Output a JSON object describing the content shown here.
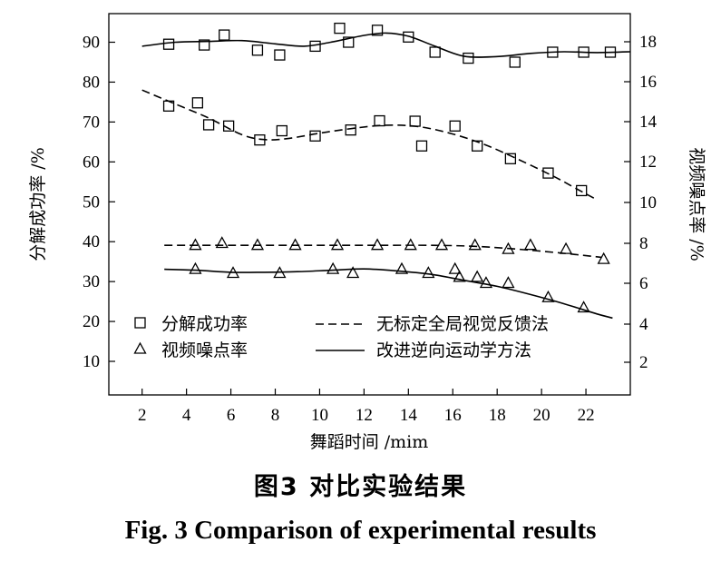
{
  "caption": {
    "cn": "图3  对比实验结果",
    "en": "Fig. 3   Comparison of experimental results"
  },
  "chart_data": {
    "type": "line",
    "xlabel": "舞蹈时间  /mim",
    "ylabel_left": "分解成功率 /%",
    "ylabel_right": "视频噪点率 /%",
    "x_ticks": [
      2,
      4,
      6,
      8,
      10,
      12,
      14,
      16,
      18,
      20,
      22
    ],
    "y_left_ticks": [
      10,
      20,
      30,
      40,
      50,
      60,
      70,
      80,
      90
    ],
    "y_right_ticks": [
      2,
      4,
      6,
      8,
      10,
      12,
      14,
      16,
      18
    ],
    "x_range": [
      0.5,
      24.0
    ],
    "legend": {
      "markers": [
        "分解成功率",
        "视频噪点率"
      ],
      "lines": [
        "无标定全局视觉反馈法",
        "改进逆向运动学方法"
      ]
    },
    "series": [
      {
        "name": "分解成功率",
        "method": "改进逆向运动学方法",
        "axis": "left",
        "marker": "square",
        "points": [
          [
            3.2,
            89.5
          ],
          [
            4.8,
            89.3
          ],
          [
            5.7,
            91.8
          ],
          [
            7.2,
            88.0
          ],
          [
            8.2,
            86.8
          ],
          [
            9.8,
            89.0
          ],
          [
            10.9,
            93.5
          ],
          [
            11.3,
            90.0
          ],
          [
            12.6,
            93.0
          ],
          [
            14.0,
            91.3
          ],
          [
            15.2,
            87.5
          ],
          [
            16.7,
            86.0
          ],
          [
            18.8,
            85.0
          ],
          [
            20.5,
            87.5
          ],
          [
            21.9,
            87.5
          ],
          [
            23.1,
            87.5
          ]
        ],
        "curve": [
          [
            2.0,
            89.0
          ],
          [
            3.5,
            90.0
          ],
          [
            5.0,
            90.2
          ],
          [
            6.5,
            90.4
          ],
          [
            8.0,
            89.6
          ],
          [
            9.3,
            89.0
          ],
          [
            10.5,
            90.0
          ],
          [
            12.0,
            91.7
          ],
          [
            13.0,
            92.3
          ],
          [
            14.0,
            91.5
          ],
          [
            15.2,
            89.0
          ],
          [
            16.5,
            86.5
          ],
          [
            18.0,
            86.4
          ],
          [
            19.5,
            87.2
          ],
          [
            21.0,
            87.6
          ],
          [
            22.5,
            87.4
          ],
          [
            24.0,
            87.6
          ]
        ]
      },
      {
        "name": "分解成功率",
        "method": "无标定全局视觉反馈法",
        "axis": "left",
        "marker": "square",
        "points": [
          [
            3.2,
            74.0
          ],
          [
            4.5,
            74.8
          ],
          [
            5.0,
            69.3
          ],
          [
            5.9,
            69.0
          ],
          [
            7.3,
            65.5
          ],
          [
            8.3,
            67.8
          ],
          [
            9.8,
            66.5
          ],
          [
            11.4,
            68.0
          ],
          [
            12.7,
            70.3
          ],
          [
            14.3,
            70.2
          ],
          [
            14.6,
            64.0
          ],
          [
            16.1,
            69.0
          ],
          [
            17.1,
            64.0
          ],
          [
            18.6,
            60.8
          ],
          [
            20.3,
            57.2
          ],
          [
            21.8,
            52.8
          ]
        ],
        "curve": [
          [
            2.0,
            78.0
          ],
          [
            3.5,
            74.5
          ],
          [
            5.0,
            71.0
          ],
          [
            6.5,
            66.8
          ],
          [
            7.5,
            65.6
          ],
          [
            8.5,
            65.8
          ],
          [
            10.0,
            67.2
          ],
          [
            11.5,
            68.4
          ],
          [
            13.0,
            69.2
          ],
          [
            14.5,
            68.8
          ],
          [
            16.0,
            67.0
          ],
          [
            17.5,
            64.2
          ],
          [
            19.0,
            60.5
          ],
          [
            20.5,
            56.5
          ],
          [
            21.5,
            53.5
          ],
          [
            22.5,
            50.5
          ]
        ]
      },
      {
        "name": "视频噪点率",
        "method": "无标定全局视觉反馈法",
        "axis": "right",
        "marker": "triangle",
        "points": [
          [
            4.4,
            7.9
          ],
          [
            5.6,
            8.0
          ],
          [
            7.2,
            7.9
          ],
          [
            8.9,
            7.9
          ],
          [
            10.8,
            7.9
          ],
          [
            12.6,
            7.9
          ],
          [
            14.1,
            7.9
          ],
          [
            15.5,
            7.9
          ],
          [
            17.0,
            7.9
          ],
          [
            18.5,
            7.7
          ],
          [
            19.5,
            7.9
          ],
          [
            21.1,
            7.7
          ],
          [
            22.8,
            7.2
          ]
        ],
        "curve": [
          [
            3.0,
            7.9
          ],
          [
            6.0,
            7.9
          ],
          [
            9.0,
            7.9
          ],
          [
            12.0,
            7.9
          ],
          [
            15.0,
            7.9
          ],
          [
            17.0,
            7.85
          ],
          [
            19.0,
            7.7
          ],
          [
            21.0,
            7.5
          ],
          [
            22.7,
            7.3
          ]
        ]
      },
      {
        "name": "视频噪点率",
        "method": "改进逆向运动学方法",
        "axis": "right",
        "marker": "triangle",
        "points": [
          [
            4.4,
            6.7
          ],
          [
            6.1,
            6.5
          ],
          [
            8.2,
            6.5
          ],
          [
            10.6,
            6.7
          ],
          [
            11.5,
            6.5
          ],
          [
            13.7,
            6.7
          ],
          [
            14.9,
            6.5
          ],
          [
            16.1,
            6.7
          ],
          [
            16.3,
            6.3
          ],
          [
            17.1,
            6.3
          ],
          [
            17.5,
            6.0
          ],
          [
            18.5,
            6.0
          ],
          [
            20.3,
            5.3
          ],
          [
            21.9,
            4.8
          ]
        ],
        "curve": [
          [
            3.0,
            6.7
          ],
          [
            4.5,
            6.65
          ],
          [
            6.0,
            6.55
          ],
          [
            7.5,
            6.55
          ],
          [
            9.0,
            6.58
          ],
          [
            10.5,
            6.65
          ],
          [
            12.0,
            6.72
          ],
          [
            13.5,
            6.62
          ],
          [
            15.0,
            6.45
          ],
          [
            16.5,
            6.15
          ],
          [
            18.0,
            5.85
          ],
          [
            19.5,
            5.45
          ],
          [
            21.0,
            5.0
          ],
          [
            22.5,
            4.5
          ],
          [
            23.2,
            4.3
          ]
        ]
      }
    ]
  }
}
